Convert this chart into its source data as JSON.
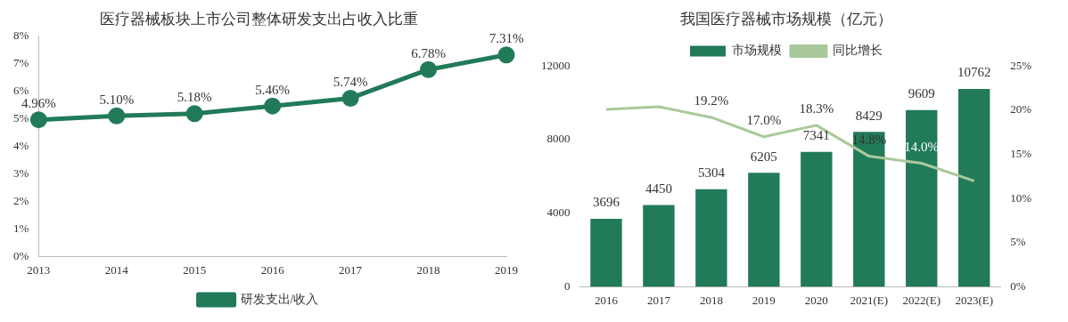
{
  "chart_data": [
    {
      "type": "line",
      "title": "医疗器械板块上市公司整体研发支出占收入比重",
      "categories": [
        "2013",
        "2014",
        "2015",
        "2016",
        "2017",
        "2018",
        "2019"
      ],
      "series": [
        {
          "name": "研发支出/收入",
          "color": "#217a58",
          "values": [
            4.96,
            5.1,
            5.18,
            5.46,
            5.74,
            6.78,
            7.31
          ],
          "value_labels": [
            "4.96%",
            "5.10%",
            "5.18%",
            "5.46%",
            "5.74%",
            "6.78%",
            "7.31%"
          ]
        }
      ],
      "ylim": [
        0,
        8
      ],
      "yticks": [
        {
          "value": 0,
          "label": "0%"
        },
        {
          "value": 1,
          "label": "1%"
        },
        {
          "value": 2,
          "label": "2%"
        },
        {
          "value": 3,
          "label": "3%"
        },
        {
          "value": 4,
          "label": "4%"
        },
        {
          "value": 5,
          "label": "5%"
        },
        {
          "value": 6,
          "label": "6%"
        },
        {
          "value": 7,
          "label": "7%"
        },
        {
          "value": 8,
          "label": "8%"
        }
      ],
      "marker": "circle",
      "legend": "bottom",
      "grid": false
    },
    {
      "type": "bar",
      "title": "我国医疗器械市场规模（亿元）",
      "categories": [
        "2016",
        "2017",
        "2018",
        "2019",
        "2020",
        "2021(E)",
        "2022(E)",
        "2023(E)"
      ],
      "series": [
        {
          "name": "市场规模",
          "type": "bar",
          "color": "#217a58",
          "values": [
            3696,
            4450,
            5304,
            6205,
            7341,
            8429,
            9609,
            10762
          ],
          "value_labels": [
            "3696",
            "4450",
            "5304",
            "6205",
            "7341",
            "8429",
            "9609",
            "10762"
          ]
        },
        {
          "name": "同比增长",
          "type": "line",
          "axis": "y2",
          "color": "#a9c99b",
          "values": [
            20.1,
            20.4,
            19.2,
            17.0,
            18.3,
            14.8,
            14.0,
            12.0
          ],
          "value_labels": [
            null,
            null,
            "19.2%",
            "17.0%",
            "18.3%",
            "14.8%",
            "14.0%",
            null
          ]
        }
      ],
      "ylim": [
        0,
        12000
      ],
      "yticks": [
        0,
        4000,
        8000,
        12000
      ],
      "y2lim": [
        0,
        25
      ],
      "y2ticks": [
        {
          "value": 0,
          "label": "0%"
        },
        {
          "value": 5,
          "label": "5%"
        },
        {
          "value": 10,
          "label": "10%"
        },
        {
          "value": 15,
          "label": "15%"
        },
        {
          "value": 20,
          "label": "20%"
        },
        {
          "value": 25,
          "label": "25%"
        }
      ],
      "marker": "none",
      "legend": "top",
      "grid": false
    }
  ]
}
